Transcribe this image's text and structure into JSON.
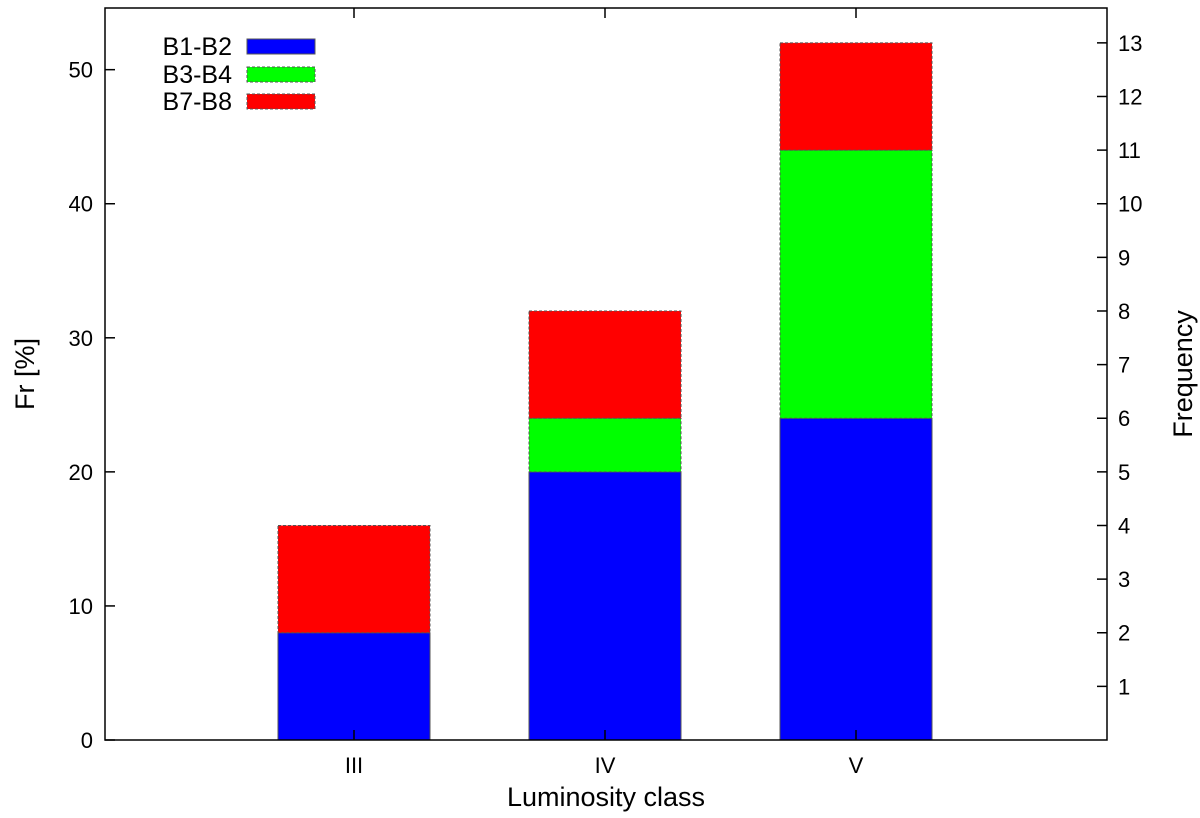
{
  "chart_data": {
    "type": "bar",
    "stacked": true,
    "categories": [
      "III",
      "IV",
      "V"
    ],
    "series": [
      {
        "name": "B1-B2",
        "color": "#0000ff",
        "values": [
          8,
          20,
          24
        ]
      },
      {
        "name": "B3-B4",
        "color": "#00ff00",
        "values": [
          0,
          4,
          20
        ]
      },
      {
        "name": "B7-B8",
        "color": "#ff0000",
        "values": [
          8,
          8,
          8
        ]
      }
    ],
    "xlabel": "Luminosity class",
    "ylabel": "Fr [%]",
    "y2label": "Frequency",
    "ylim": [
      0,
      54.6
    ],
    "y2lim": [
      0,
      13.65
    ],
    "yticks": [
      0,
      10,
      20,
      30,
      40,
      50
    ],
    "y2ticks": [
      1,
      2,
      3,
      4,
      5,
      6,
      7,
      8,
      9,
      10,
      11,
      12,
      13
    ],
    "grid": false,
    "legend_position": "top-left"
  }
}
